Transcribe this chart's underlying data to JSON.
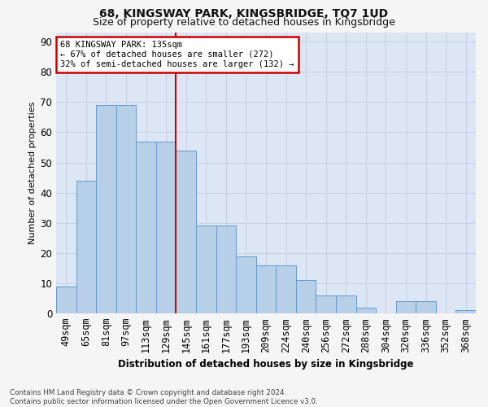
{
  "title_line1": "68, KINGSWAY PARK, KINGSBRIDGE, TQ7 1UD",
  "title_line2": "Size of property relative to detached houses in Kingsbridge",
  "xlabel": "Distribution of detached houses by size in Kingsbridge",
  "ylabel": "Number of detached properties",
  "categories": [
    "49sqm",
    "65sqm",
    "81sqm",
    "97sqm",
    "113sqm",
    "129sqm",
    "145sqm",
    "161sqm",
    "177sqm",
    "193sqm",
    "209sqm",
    "224sqm",
    "240sqm",
    "256sqm",
    "272sqm",
    "288sqm",
    "304sqm",
    "320sqm",
    "336sqm",
    "352sqm",
    "368sqm"
  ],
  "values": [
    9,
    44,
    69,
    69,
    57,
    57,
    54,
    29,
    29,
    19,
    16,
    16,
    11,
    6,
    6,
    2,
    0,
    4,
    4,
    0,
    1
  ],
  "bar_color": "#b8cfe8",
  "bar_edgecolor": "#6699cc",
  "vline_x_idx": 6,
  "vline_color": "#cc0000",
  "annotation_text": "68 KINGSWAY PARK: 135sqm\n← 67% of detached houses are smaller (272)\n32% of semi-detached houses are larger (132) →",
  "annotation_box_facecolor": "#ffffff",
  "annotation_box_edgecolor": "#cc0000",
  "ylim": [
    0,
    93
  ],
  "yticks": [
    0,
    10,
    20,
    30,
    40,
    50,
    60,
    70,
    80,
    90
  ],
  "grid_color": "#c5cfe0",
  "bg_color": "#dce6f5",
  "fig_facecolor": "#f5f5f5",
  "footnote": "Contains HM Land Registry data © Crown copyright and database right 2024.\nContains public sector information licensed under the Open Government Licence v3.0."
}
